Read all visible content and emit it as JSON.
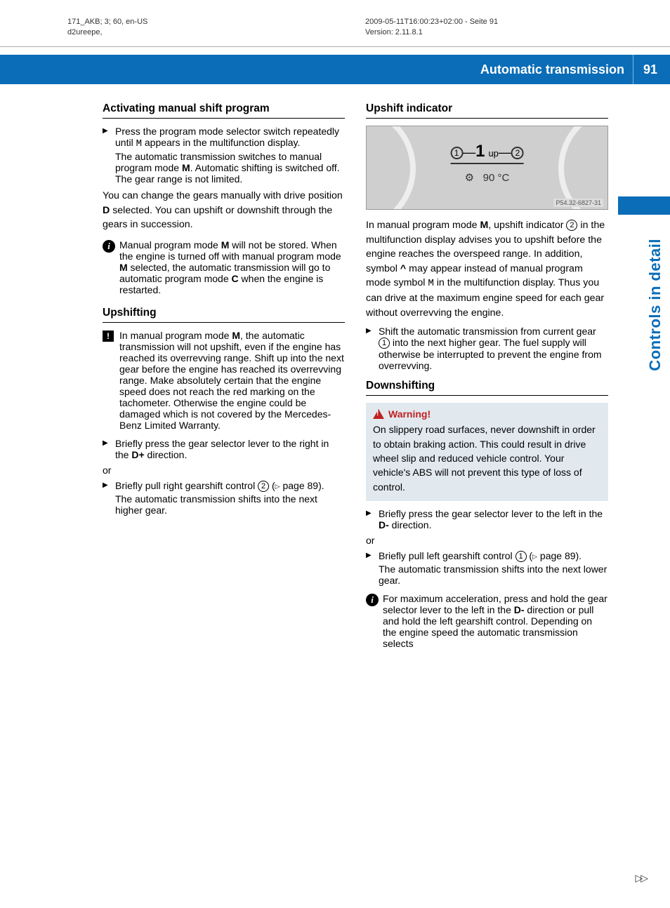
{
  "meta": {
    "left_line1": "171_AKB; 3; 60, en-US",
    "left_line2": "d2ureepe,",
    "right_line1": "2009-05-11T16:00:23+02:00 - Seite 91",
    "right_line2": "Version: 2.11.8.1"
  },
  "header": {
    "title": "Automatic transmission",
    "page": "91"
  },
  "side": {
    "label": "Controls in detail"
  },
  "colors": {
    "brand": "#0b6db7",
    "warning_bg": "#e1e9ef",
    "warning_red": "#c02020"
  },
  "left_col": {
    "h_activating": "Activating manual shift program",
    "step1a": "Press the program mode selector switch repeatedly until ",
    "step1b": " appears in the multifunction display.",
    "step1_m": "M",
    "step1_sub": "The automatic transmission switches to manual program mode ",
    "step1_sub_b": "M",
    "step1_sub2": ". Automatic shifting is switched off. The gear range is not limited.",
    "para2a": "You can change the gears manually with drive position ",
    "para2b": "D",
    "para2c": " selected. You can upshift or downshift through the gears in succession.",
    "note1a": "Manual program mode ",
    "note1b": "M",
    "note1c": " will not be stored. When the engine is turned off with manual program mode ",
    "note1d": "M",
    "note1e": " selected, the automatic transmission will go to automatic program mode ",
    "note1f": "C",
    "note1g": " when the engine is restarted.",
    "h_upshift": "Upshifting",
    "excl1a": "In manual program mode ",
    "excl1b": "M",
    "excl1c": ", the automatic transmission will not upshift, even if the engine has reached its overrevving range. Shift up into the next gear before the engine has reached its overrevving range. Make absolutely certain that the engine speed does not reach the red marking on the tachometer. Otherwise the engine could be damaged which is not covered by the Mercedes-Benz Limited Warranty.",
    "step_up1a": "Briefly press the gear selector lever to the right in the ",
    "step_up1b": "D+",
    "step_up1c": " direction.",
    "or": "or",
    "step_up2a": "Briefly pull right gearshift control ",
    "step_up2_circ": "2",
    "step_up2b": " (",
    "step_up2c": " page 89).",
    "step_up2_sub": "The automatic transmission shifts into the next higher gear."
  },
  "right_col": {
    "h_indicator": "Upshift indicator",
    "fig": {
      "one": "1",
      "big1": "1",
      "up": "up",
      "two": "2",
      "temp": "90 °C",
      "label": "P54.32-6827-31"
    },
    "para1a": "In manual program mode ",
    "para1b": "M",
    "para1c": ", upshift indicator ",
    "para1_circ": "2",
    "para1d": " in the multifunction display advises you to upshift before the engine reaches the overspeed range. In addition, symbol ",
    "para1e": "^",
    "para1f": " may appear instead of manual program mode symbol ",
    "para1g": "M",
    "para1h": " in the multifunction display. Thus you can drive at the maximum engine speed for each gear without overrevving the engine.",
    "step1a": "Shift the automatic transmission from current gear ",
    "step1_circ": "1",
    "step1b": " into the next higher gear. The fuel supply will otherwise be interrupted to prevent the engine from overrevving.",
    "h_down": "Downshifting",
    "warn_head": "Warning!",
    "warn_body": "On slippery road surfaces, never downshift in order to obtain braking action. This could result in drive wheel slip and reduced vehicle control. Your vehicle's ABS will not prevent this type of loss of control.",
    "step_d1a": "Briefly press the gear selector lever to the left in the ",
    "step_d1b": "D-",
    "step_d1c": " direction.",
    "or": "or",
    "step_d2a": "Briefly pull left gearshift control ",
    "step_d2_circ": "1",
    "step_d2b": " (",
    "step_d2c": " page 89).",
    "step_d2_sub": "The automatic transmission shifts into the next lower gear.",
    "note2a": "For maximum acceleration, press and hold the gear selector lever to the left in the ",
    "note2b": "D-",
    "note2c": " direction or pull and hold the left gearshift control. Depending on the engine speed the automatic transmission selects"
  },
  "cont": "▷▷"
}
